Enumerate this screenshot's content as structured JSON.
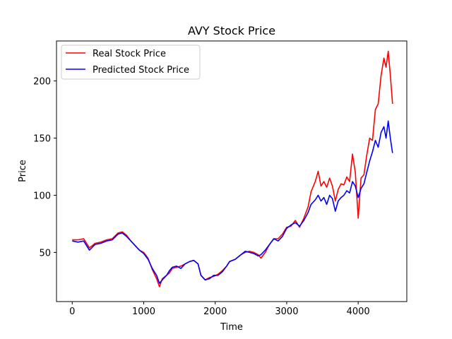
{
  "chart_data": {
    "type": "line",
    "title": "AVY Stock Price",
    "xlabel": "Time",
    "ylabel": "Price",
    "xlim": [
      -220,
      4680
    ],
    "ylim": [
      7,
      235
    ],
    "xticks": [
      0,
      1000,
      2000,
      3000,
      4000
    ],
    "yticks": [
      50,
      100,
      150,
      200
    ],
    "grid": false,
    "legend_position": "upper-left",
    "series": [
      {
        "name": "Real Stock Price",
        "color": "#ff0000",
        "points": [
          [
            0,
            61
          ],
          [
            80,
            61
          ],
          [
            160,
            62
          ],
          [
            240,
            54
          ],
          [
            320,
            58
          ],
          [
            400,
            59
          ],
          [
            480,
            61
          ],
          [
            560,
            62
          ],
          [
            640,
            67
          ],
          [
            700,
            68
          ],
          [
            760,
            65
          ],
          [
            820,
            60
          ],
          [
            880,
            56
          ],
          [
            940,
            52
          ],
          [
            1000,
            50
          ],
          [
            1060,
            45
          ],
          [
            1120,
            35
          ],
          [
            1180,
            27
          ],
          [
            1220,
            20
          ],
          [
            1260,
            27
          ],
          [
            1320,
            30
          ],
          [
            1360,
            32
          ],
          [
            1400,
            36
          ],
          [
            1460,
            37
          ],
          [
            1520,
            38
          ],
          [
            1580,
            40
          ],
          [
            1640,
            42
          ],
          [
            1700,
            43
          ],
          [
            1760,
            40
          ],
          [
            1800,
            30
          ],
          [
            1860,
            26
          ],
          [
            1920,
            28
          ],
          [
            1980,
            29
          ],
          [
            2040,
            31
          ],
          [
            2100,
            34
          ],
          [
            2160,
            38
          ],
          [
            2200,
            42
          ],
          [
            2280,
            44
          ],
          [
            2360,
            48
          ],
          [
            2420,
            50
          ],
          [
            2480,
            51
          ],
          [
            2540,
            50
          ],
          [
            2600,
            48
          ],
          [
            2640,
            45
          ],
          [
            2700,
            50
          ],
          [
            2760,
            57
          ],
          [
            2820,
            62
          ],
          [
            2880,
            62
          ],
          [
            2940,
            66
          ],
          [
            3000,
            72
          ],
          [
            3060,
            73
          ],
          [
            3120,
            78
          ],
          [
            3180,
            72
          ],
          [
            3240,
            80
          ],
          [
            3300,
            90
          ],
          [
            3340,
            103
          ],
          [
            3400,
            112
          ],
          [
            3440,
            121
          ],
          [
            3480,
            108
          ],
          [
            3520,
            112
          ],
          [
            3560,
            107
          ],
          [
            3600,
            115
          ],
          [
            3640,
            108
          ],
          [
            3680,
            95
          ],
          [
            3720,
            105
          ],
          [
            3760,
            110
          ],
          [
            3800,
            109
          ],
          [
            3840,
            116
          ],
          [
            3880,
            112
          ],
          [
            3920,
            136
          ],
          [
            3960,
            120
          ],
          [
            4000,
            80
          ],
          [
            4040,
            115
          ],
          [
            4080,
            118
          ],
          [
            4120,
            135
          ],
          [
            4160,
            150
          ],
          [
            4200,
            148
          ],
          [
            4240,
            175
          ],
          [
            4280,
            180
          ],
          [
            4320,
            205
          ],
          [
            4360,
            220
          ],
          [
            4390,
            212
          ],
          [
            4420,
            226
          ],
          [
            4450,
            205
          ],
          [
            4480,
            180
          ]
        ]
      },
      {
        "name": "Predicted Stock Price",
        "color": "#0000ff",
        "points": [
          [
            0,
            60
          ],
          [
            80,
            59
          ],
          [
            160,
            60
          ],
          [
            240,
            52
          ],
          [
            320,
            57
          ],
          [
            400,
            58
          ],
          [
            480,
            60
          ],
          [
            560,
            61
          ],
          [
            640,
            66
          ],
          [
            700,
            67
          ],
          [
            760,
            64
          ],
          [
            820,
            60
          ],
          [
            880,
            56
          ],
          [
            940,
            52
          ],
          [
            1000,
            49
          ],
          [
            1060,
            44
          ],
          [
            1120,
            36
          ],
          [
            1180,
            30
          ],
          [
            1220,
            23
          ],
          [
            1260,
            26
          ],
          [
            1320,
            30
          ],
          [
            1360,
            34
          ],
          [
            1400,
            37
          ],
          [
            1460,
            38
          ],
          [
            1520,
            36
          ],
          [
            1580,
            40
          ],
          [
            1640,
            42
          ],
          [
            1700,
            43
          ],
          [
            1760,
            40
          ],
          [
            1800,
            30
          ],
          [
            1860,
            26
          ],
          [
            1920,
            27
          ],
          [
            1980,
            30
          ],
          [
            2040,
            30
          ],
          [
            2100,
            33
          ],
          [
            2160,
            38
          ],
          [
            2200,
            42
          ],
          [
            2280,
            44
          ],
          [
            2360,
            48
          ],
          [
            2420,
            51
          ],
          [
            2480,
            50
          ],
          [
            2540,
            49
          ],
          [
            2600,
            47
          ],
          [
            2640,
            48
          ],
          [
            2700,
            52
          ],
          [
            2760,
            57
          ],
          [
            2820,
            62
          ],
          [
            2880,
            60
          ],
          [
            2940,
            64
          ],
          [
            3000,
            71
          ],
          [
            3060,
            74
          ],
          [
            3120,
            76
          ],
          [
            3180,
            73
          ],
          [
            3240,
            78
          ],
          [
            3300,
            85
          ],
          [
            3340,
            92
          ],
          [
            3400,
            96
          ],
          [
            3440,
            100
          ],
          [
            3480,
            95
          ],
          [
            3520,
            98
          ],
          [
            3560,
            92
          ],
          [
            3600,
            100
          ],
          [
            3640,
            97
          ],
          [
            3680,
            86
          ],
          [
            3720,
            95
          ],
          [
            3760,
            98
          ],
          [
            3800,
            100
          ],
          [
            3840,
            104
          ],
          [
            3880,
            102
          ],
          [
            3920,
            112
          ],
          [
            3960,
            108
          ],
          [
            4000,
            98
          ],
          [
            4040,
            106
          ],
          [
            4080,
            110
          ],
          [
            4120,
            120
          ],
          [
            4160,
            130
          ],
          [
            4200,
            138
          ],
          [
            4240,
            148
          ],
          [
            4280,
            142
          ],
          [
            4320,
            155
          ],
          [
            4360,
            160
          ],
          [
            4390,
            150
          ],
          [
            4420,
            165
          ],
          [
            4450,
            150
          ],
          [
            4480,
            137
          ]
        ]
      }
    ]
  }
}
